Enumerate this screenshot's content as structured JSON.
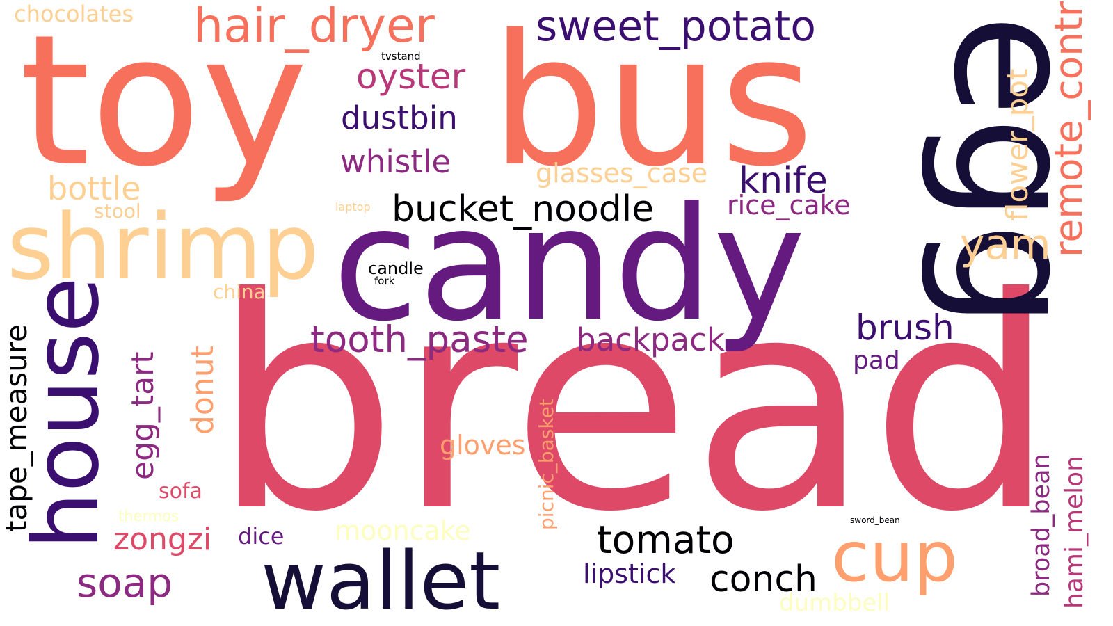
{
  "colors": {
    "background": "#ffffff",
    "black": "#000004",
    "navy": "#150e37",
    "indigo": "#3b0f70",
    "purple": "#651a80",
    "violet": "#8c2981",
    "magenta": "#b73779",
    "red": "#de4968",
    "coral": "#f7705c",
    "salmon": "#fe9f6d",
    "peach": "#fecf92",
    "cream": "#fcfdbf"
  },
  "words": [
    {
      "text": "bread",
      "color": "red"
    },
    {
      "text": "toy",
      "color": "coral"
    },
    {
      "text": "bus",
      "color": "coral"
    },
    {
      "text": "candy",
      "color": "purple"
    },
    {
      "text": "egg",
      "color": "navy"
    },
    {
      "text": "shrimp",
      "color": "peach"
    },
    {
      "text": "house",
      "color": "indigo"
    },
    {
      "text": "wallet",
      "color": "navy"
    },
    {
      "text": "cup",
      "color": "salmon"
    },
    {
      "text": "hair_dryer",
      "color": "coral"
    },
    {
      "text": "sweet_potato",
      "color": "indigo"
    },
    {
      "text": "bucket_noodle",
      "color": "black"
    },
    {
      "text": "tooth_paste",
      "color": "violet"
    },
    {
      "text": "tomato",
      "color": "black"
    },
    {
      "text": "remote_control",
      "color": "coral"
    },
    {
      "text": "tape_measure",
      "color": "black"
    },
    {
      "text": "oyster",
      "color": "magenta"
    },
    {
      "text": "dustbin",
      "color": "indigo"
    },
    {
      "text": "whistle",
      "color": "violet"
    },
    {
      "text": "bottle",
      "color": "peach"
    },
    {
      "text": "knife",
      "color": "indigo"
    },
    {
      "text": "backpack",
      "color": "violet"
    },
    {
      "text": "brush",
      "color": "indigo"
    },
    {
      "text": "egg_tart",
      "color": "violet"
    },
    {
      "text": "donut",
      "color": "salmon"
    },
    {
      "text": "soap",
      "color": "violet"
    },
    {
      "text": "conch",
      "color": "black"
    },
    {
      "text": "zongzi",
      "color": "red"
    },
    {
      "text": "flower_pot",
      "color": "peach"
    },
    {
      "text": "yam",
      "color": "peach"
    },
    {
      "text": "glasses_case",
      "color": "peach"
    },
    {
      "text": "rice_cake",
      "color": "violet"
    },
    {
      "text": "lipstick",
      "color": "indigo"
    },
    {
      "text": "pad",
      "color": "purple"
    },
    {
      "text": "gloves",
      "color": "salmon"
    },
    {
      "text": "mooncake",
      "color": "cream"
    },
    {
      "text": "hami_melon",
      "color": "magenta"
    },
    {
      "text": "broad_bean",
      "color": "violet"
    },
    {
      "text": "picnic_basket",
      "color": "salmon"
    },
    {
      "text": "dice",
      "color": "purple"
    },
    {
      "text": "sofa",
      "color": "red"
    },
    {
      "text": "dumbbell",
      "color": "cream"
    },
    {
      "text": "chocolates",
      "color": "peach"
    },
    {
      "text": "stool",
      "color": "peach"
    },
    {
      "text": "china",
      "color": "peach"
    },
    {
      "text": "candle",
      "color": "black"
    },
    {
      "text": "thermos",
      "color": "cream"
    },
    {
      "text": "fork",
      "color": "black"
    },
    {
      "text": "tvstand",
      "color": "black"
    },
    {
      "text": "laptop",
      "color": "peach"
    },
    {
      "text": "sword_bean",
      "color": "black"
    }
  ]
}
